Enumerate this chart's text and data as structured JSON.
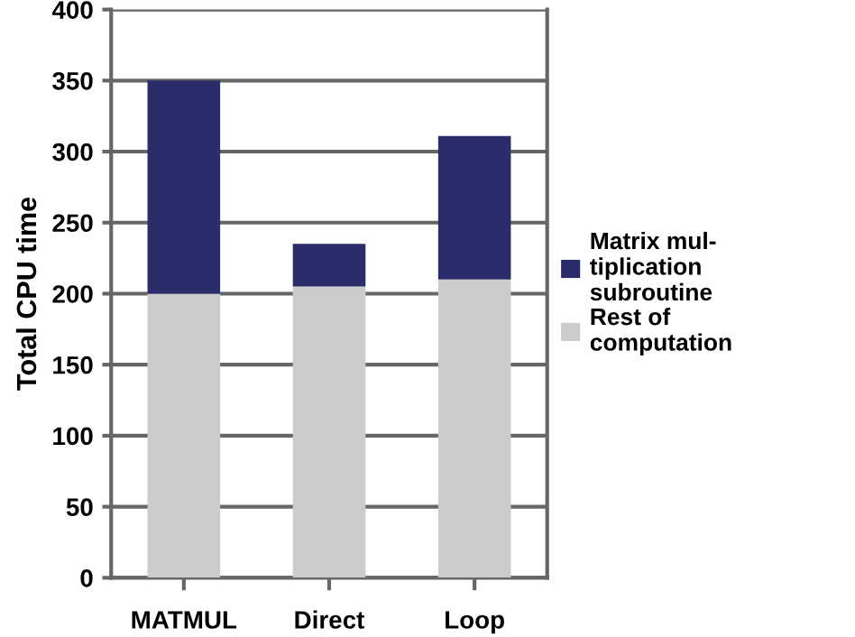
{
  "chart_data": {
    "type": "bar",
    "stacked": true,
    "ylabel": "Total CPU time",
    "categories": [
      "MATMUL",
      "Direct",
      "Loop"
    ],
    "series": [
      {
        "name": "Rest of\ncomputation",
        "color": "#cccccc",
        "values": [
          200,
          205,
          210
        ]
      },
      {
        "name": "Matrix mul-\ntiplication\nsubroutine",
        "color": "#2b2d6b",
        "values": [
          150,
          30,
          101
        ]
      }
    ],
    "ylim": [
      0,
      400
    ],
    "yticks": [
      0,
      50,
      100,
      150,
      200,
      250,
      300,
      350,
      400
    ],
    "grid": "y",
    "legend": "right"
  }
}
